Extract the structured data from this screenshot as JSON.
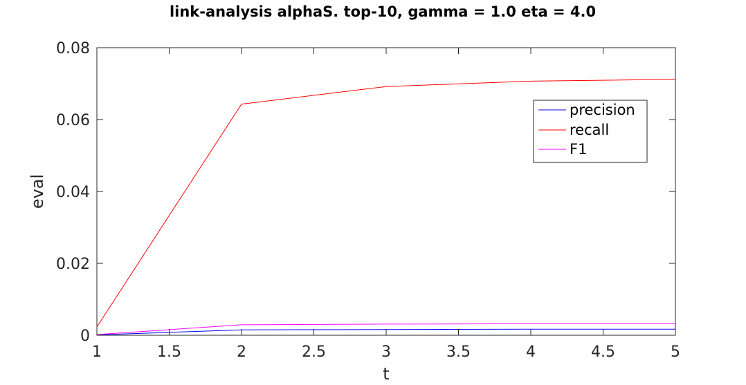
{
  "chart_data": {
    "type": "line",
    "title": "link-analysis alphaS. top-10, gamma = 1.0 eta = 4.0",
    "xlabel": "t",
    "ylabel": "eval",
    "xlim": [
      1,
      5
    ],
    "ylim": [
      0,
      0.08
    ],
    "xticks": [
      "1",
      "1.5",
      "2",
      "2.5",
      "3",
      "3.5",
      "4",
      "4.5",
      "5"
    ],
    "yticks": [
      "0",
      "0.02",
      "0.04",
      "0.06",
      "0.08"
    ],
    "x": [
      1,
      2,
      3,
      4,
      5
    ],
    "grid": false,
    "legend_position": "top-right",
    "series": [
      {
        "name": "precision",
        "color": "#0000ff",
        "values": [
          0.0001,
          0.0015,
          0.0016,
          0.0017,
          0.0017
        ]
      },
      {
        "name": "recall",
        "color": "#ff0000",
        "values": [
          0.0023,
          0.0643,
          0.0692,
          0.0707,
          0.0712
        ]
      },
      {
        "name": "F1",
        "color": "#ff00ff",
        "values": [
          0.0002,
          0.0029,
          0.0031,
          0.0032,
          0.0032
        ]
      }
    ]
  }
}
